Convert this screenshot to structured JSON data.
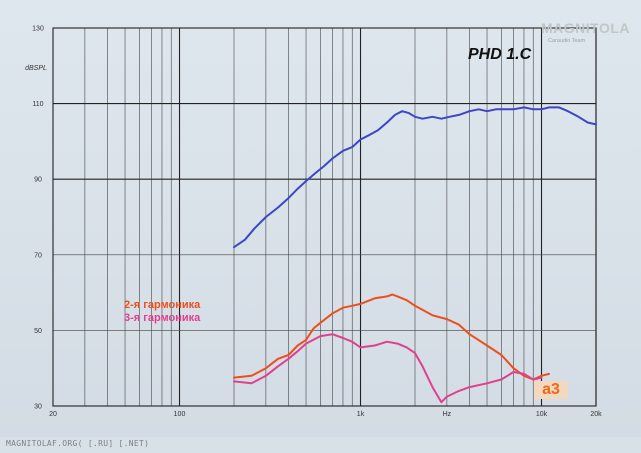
{
  "chart_data": {
    "type": "line",
    "title": "PHD 1.C",
    "x_scale": "log",
    "xlim": [
      20,
      20000
    ],
    "ylim": [
      30,
      130
    ],
    "x_ticks": [
      {
        "value": 20,
        "label": "20"
      },
      {
        "value": 100,
        "label": "100"
      },
      {
        "value": 1000,
        "label": "1k"
      },
      {
        "value": 10000,
        "label": "10k"
      },
      {
        "value": 20000,
        "label": "20k"
      }
    ],
    "x_unit_label": "Hz",
    "y_ticks": [
      {
        "value": 130,
        "label": "130"
      },
      {
        "value": 110,
        "label": "110"
      },
      {
        "value": 90,
        "label": "90"
      },
      {
        "value": 70,
        "label": "70"
      },
      {
        "value": 50,
        "label": "50"
      },
      {
        "value": 30,
        "label": "30"
      }
    ],
    "y_unit_label": "dBSPL",
    "grid": true,
    "series": [
      {
        "color": "#3f45c9",
        "points": [
          [
            200,
            72
          ],
          [
            230,
            74
          ],
          [
            260,
            77
          ],
          [
            300,
            80
          ],
          [
            350,
            82.5
          ],
          [
            400,
            85
          ],
          [
            450,
            87.5
          ],
          [
            500,
            89.5
          ],
          [
            560,
            91.5
          ],
          [
            630,
            93.5
          ],
          [
            700,
            95.5
          ],
          [
            800,
            97.5
          ],
          [
            900,
            98.5
          ],
          [
            1000,
            100.5
          ],
          [
            1100,
            101.5
          ],
          [
            1250,
            103
          ],
          [
            1400,
            105
          ],
          [
            1550,
            107
          ],
          [
            1700,
            108
          ],
          [
            1850,
            107.5
          ],
          [
            2000,
            106.5
          ],
          [
            2200,
            106
          ],
          [
            2500,
            106.5
          ],
          [
            2800,
            106
          ],
          [
            3100,
            106.5
          ],
          [
            3500,
            107
          ],
          [
            4000,
            108
          ],
          [
            4500,
            108.5
          ],
          [
            5000,
            108
          ],
          [
            5600,
            108.5
          ],
          [
            6300,
            108.5
          ],
          [
            7000,
            108.5
          ],
          [
            8000,
            109
          ],
          [
            9000,
            108.5
          ],
          [
            10000,
            108.5
          ],
          [
            11000,
            109
          ],
          [
            12500,
            109
          ],
          [
            14000,
            108
          ],
          [
            16000,
            106.5
          ],
          [
            18000,
            105
          ],
          [
            20000,
            104.5
          ]
        ]
      },
      {
        "name": "2-я гармоника",
        "color": "#ec4f1c",
        "points": [
          [
            200,
            37.5
          ],
          [
            250,
            38
          ],
          [
            300,
            40
          ],
          [
            350,
            42.5
          ],
          [
            400,
            43.5
          ],
          [
            450,
            46
          ],
          [
            500,
            47.5
          ],
          [
            550,
            50.5
          ],
          [
            600,
            52
          ],
          [
            700,
            54.5
          ],
          [
            800,
            56
          ],
          [
            900,
            56.5
          ],
          [
            1000,
            57
          ],
          [
            1200,
            58.5
          ],
          [
            1400,
            59
          ],
          [
            1500,
            59.5
          ],
          [
            1600,
            59
          ],
          [
            1800,
            58
          ],
          [
            2000,
            56.5
          ],
          [
            2500,
            54
          ],
          [
            3000,
            53
          ],
          [
            3500,
            51.5
          ],
          [
            4000,
            49
          ],
          [
            5000,
            46
          ],
          [
            6000,
            43.5
          ],
          [
            7000,
            40
          ],
          [
            8000,
            38
          ],
          [
            9000,
            37
          ],
          [
            10000,
            38
          ],
          [
            11000,
            38.5
          ]
        ]
      },
      {
        "name": "3-я гармоника",
        "color": "#e0408e",
        "points": [
          [
            200,
            36.5
          ],
          [
            250,
            36
          ],
          [
            300,
            38
          ],
          [
            350,
            40.5
          ],
          [
            400,
            42.5
          ],
          [
            450,
            44.5
          ],
          [
            500,
            46.5
          ],
          [
            600,
            48.5
          ],
          [
            700,
            49
          ],
          [
            800,
            48
          ],
          [
            900,
            47
          ],
          [
            1000,
            45.5
          ],
          [
            1200,
            46
          ],
          [
            1400,
            47
          ],
          [
            1600,
            46.5
          ],
          [
            1800,
            45.5
          ],
          [
            2000,
            44
          ],
          [
            2200,
            40.5
          ],
          [
            2500,
            35
          ],
          [
            2800,
            31
          ],
          [
            3000,
            32.5
          ],
          [
            3500,
            34
          ],
          [
            4000,
            35
          ],
          [
            5000,
            36
          ],
          [
            6000,
            37
          ],
          [
            7000,
            39
          ],
          [
            8000,
            38.5
          ],
          [
            9000,
            37
          ],
          [
            10000,
            37.5
          ]
        ]
      }
    ]
  },
  "branding": {
    "logo_main": "MAGNITOLA",
    "logo_sub": "Caraudio Team",
    "badge": "a3",
    "footer_text": "MAGNITOLAF.ORG( [.RU] [.NET)"
  }
}
